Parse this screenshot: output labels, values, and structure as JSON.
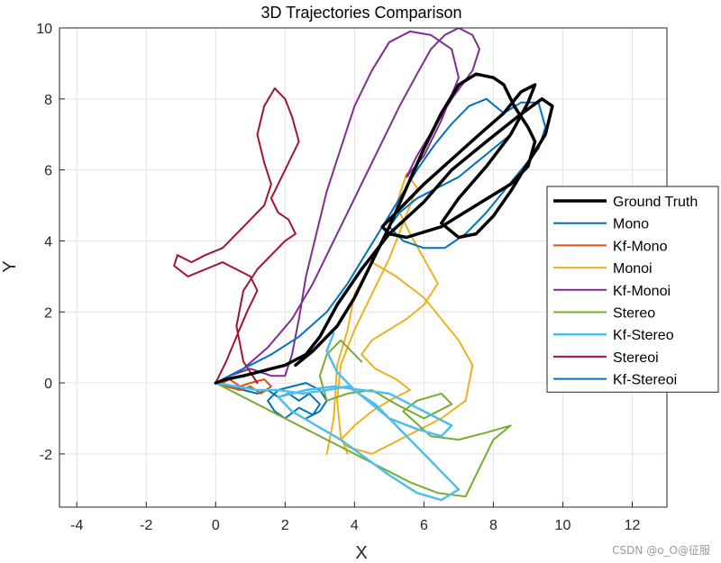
{
  "watermark": "CSDN @o_O@征服",
  "chart_data": {
    "type": "line",
    "title": "3D Trajectories Comparison",
    "xlabel": "X",
    "ylabel": "Y",
    "xlim": [
      -4.5,
      13
    ],
    "ylim": [
      -3.5,
      10
    ],
    "xticks": [
      -4,
      -2,
      0,
      2,
      4,
      6,
      8,
      10,
      12
    ],
    "yticks": [
      -2,
      0,
      2,
      4,
      6,
      8,
      10
    ],
    "grid": true,
    "legend_position": "right",
    "series": [
      {
        "name": "Ground Truth",
        "color": "#000000",
        "width": 3.5,
        "x": [
          2.3,
          2.8,
          3.5,
          4.0,
          4.5,
          5.0,
          5.5,
          6.0,
          6.5,
          7.0,
          7.5,
          8.0,
          8.3,
          8.6,
          9.0,
          9.2,
          9.0,
          8.5,
          7.5,
          6.5,
          5.5,
          5.0,
          4.8,
          5.0,
          5.4,
          6.0,
          6.8,
          7.6,
          8.3,
          8.8,
          9.2,
          9.0,
          8.5,
          7.8,
          7.0,
          6.5,
          7.0,
          7.5,
          8.0,
          8.5,
          9.0,
          9.5,
          9.7,
          9.4,
          8.7,
          7.8,
          6.8,
          6.0,
          5.0,
          4.2,
          3.5,
          3.0,
          2.6,
          2.0,
          1.6,
          1.2,
          0.8,
          0.3,
          0.0
        ],
        "y": [
          0.5,
          0.9,
          1.6,
          2.4,
          3.4,
          4.4,
          5.5,
          6.6,
          7.6,
          8.4,
          8.7,
          8.6,
          8.4,
          7.8,
          7.2,
          6.8,
          6.1,
          5.6,
          5.0,
          4.4,
          4.1,
          4.2,
          4.4,
          4.6,
          5.0,
          5.6,
          6.3,
          7.0,
          7.6,
          8.2,
          8.4,
          7.9,
          7.0,
          6.1,
          5.2,
          4.5,
          4.1,
          4.2,
          4.7,
          5.4,
          6.2,
          7.0,
          7.8,
          8.0,
          7.5,
          6.8,
          6.0,
          5.1,
          4.2,
          3.2,
          2.2,
          1.3,
          0.8,
          0.5,
          0.4,
          0.3,
          0.2,
          0.1,
          0.0
        ]
      },
      {
        "name": "Mono",
        "color": "#0072BD",
        "width": 2,
        "x": [
          0.0,
          0.4,
          0.8,
          1.2,
          1.5,
          1.8,
          2.1,
          2.4,
          2.7,
          3.0,
          2.8,
          2.4,
          2.0,
          1.7,
          1.5,
          1.8,
          2.2,
          2.6,
          3.0,
          3.2,
          3.0,
          2.6
        ],
        "y": [
          0.0,
          -0.1,
          -0.2,
          -0.3,
          -0.2,
          -0.4,
          -0.3,
          -0.5,
          -0.3,
          -0.6,
          -0.9,
          -0.7,
          -1.0,
          -0.8,
          -0.5,
          -0.2,
          -0.1,
          0.0,
          -0.2,
          -0.5,
          -0.8,
          -1.0
        ]
      },
      {
        "name": "Kf-Mono",
        "color": "#D95319",
        "width": 2,
        "x": [
          0.0,
          0.3,
          0.7,
          1.0,
          1.3,
          1.6,
          1.4,
          1.0,
          0.7,
          0.4,
          0.2
        ],
        "y": [
          0.0,
          -0.1,
          -0.2,
          -0.1,
          -0.3,
          -0.1,
          0.1,
          0.0,
          -0.1,
          0.1,
          0.0
        ]
      },
      {
        "name": "Monoi",
        "color": "#EDB120",
        "width": 2,
        "x": [
          3.8,
          3.6,
          3.5,
          3.6,
          4.0,
          4.5,
          5.0,
          5.4,
          5.8,
          5.5,
          5.2,
          5.6,
          6.0,
          6.4,
          6.0,
          5.5,
          5.0,
          4.5,
          4.2,
          4.6,
          5.2,
          5.6,
          5.0,
          4.5,
          4.0,
          3.6,
          3.8,
          4.5,
          5.5,
          6.5,
          7.2,
          7.4,
          7.0,
          6.5,
          6.0,
          5.2,
          4.5,
          4.0,
          3.8,
          3.5,
          3.4,
          3.2
        ],
        "y": [
          -2.0,
          -1.5,
          -0.5,
          0.5,
          1.5,
          2.5,
          3.5,
          4.5,
          5.5,
          5.9,
          5.0,
          4.2,
          3.5,
          2.8,
          2.2,
          1.8,
          1.5,
          1.2,
          0.8,
          0.4,
          0.1,
          -0.2,
          -0.5,
          -0.8,
          -1.2,
          -1.6,
          -1.8,
          -2.0,
          -1.5,
          -1.0,
          -0.5,
          0.5,
          1.2,
          1.8,
          2.4,
          3.0,
          3.4,
          2.5,
          1.5,
          0.5,
          -1.0,
          -2.0
        ]
      },
      {
        "name": "Kf-Monoi",
        "color": "#7E2F8E",
        "width": 2,
        "x": [
          0.0,
          0.8,
          1.5,
          2.2,
          2.8,
          3.3,
          3.8,
          4.3,
          4.8,
          5.3,
          5.8,
          6.2,
          6.6,
          7.0,
          7.4,
          7.6,
          7.4,
          6.8,
          6.3,
          5.8,
          5.5,
          6.0,
          6.5,
          7.0,
          6.8,
          6.2,
          5.6,
          5.0,
          4.5,
          4.0,
          3.6,
          3.2,
          2.9,
          2.6,
          2.4,
          2.2,
          2.0,
          1.6,
          1.0,
          0.4,
          0.0
        ],
        "y": [
          0.0,
          0.4,
          1.0,
          1.8,
          2.8,
          3.8,
          4.8,
          5.8,
          6.8,
          7.8,
          8.7,
          9.4,
          9.8,
          10.0,
          9.8,
          9.4,
          8.8,
          8.0,
          7.2,
          6.4,
          5.8,
          6.4,
          7.4,
          8.6,
          9.4,
          9.8,
          9.9,
          9.6,
          8.8,
          7.8,
          6.6,
          5.4,
          4.2,
          3.0,
          1.8,
          0.8,
          0.2,
          0.2,
          0.4,
          0.2,
          0.0
        ]
      },
      {
        "name": "Stereo",
        "color": "#77AC30",
        "width": 2,
        "x": [
          0.0,
          0.8,
          1.6,
          2.4,
          3.2,
          4.0,
          4.8,
          5.6,
          6.4,
          7.2,
          8.0,
          8.5,
          7.8,
          7.0,
          6.2,
          5.4,
          5.8,
          6.5,
          6.8,
          6.0,
          5.2,
          4.5,
          3.8,
          3.2,
          3.0,
          3.2,
          3.6,
          4.2
        ],
        "y": [
          0.0,
          -0.4,
          -0.8,
          -1.2,
          -1.6,
          -2.0,
          -2.4,
          -2.8,
          -3.1,
          -3.2,
          -1.6,
          -1.2,
          -1.4,
          -1.6,
          -1.5,
          -0.8,
          -0.5,
          -0.3,
          -0.6,
          -1.0,
          -0.6,
          -0.2,
          -0.3,
          -0.5,
          0.2,
          0.8,
          1.2,
          0.6
        ]
      },
      {
        "name": "Kf-Stereo",
        "color": "#4DBEEE",
        "width": 2.5,
        "x": [
          0.0,
          0.6,
          1.2,
          1.8,
          2.5,
          3.2,
          3.8,
          4.6,
          5.2,
          5.8,
          6.5,
          7.0,
          6.5,
          5.8,
          5.0,
          4.3,
          3.6,
          2.9,
          2.2,
          1.8,
          2.6,
          3.4,
          4.2,
          5.0,
          5.6,
          6.2,
          6.8,
          6.5,
          5.8,
          5.0,
          4.5,
          4.0,
          3.5,
          3.2,
          3.4
        ],
        "y": [
          0.0,
          -0.1,
          -0.2,
          -0.2,
          -0.3,
          -0.2,
          -0.1,
          -0.6,
          -1.2,
          -1.8,
          -2.5,
          -3.0,
          -3.3,
          -3.1,
          -2.6,
          -2.1,
          -1.6,
          -1.2,
          -0.8,
          -0.4,
          -0.2,
          -0.1,
          -0.2,
          -0.3,
          -0.6,
          -0.9,
          -1.2,
          -1.5,
          -1.3,
          -1.0,
          -0.6,
          -0.2,
          0.3,
          0.9,
          1.4
        ]
      },
      {
        "name": "Stereoi",
        "color": "#A2142F",
        "width": 2,
        "x": [
          0.0,
          0.3,
          0.6,
          0.9,
          1.2,
          1.0,
          0.6,
          0.2,
          -0.3,
          -0.8,
          -1.2,
          -1.1,
          -0.7,
          -0.3,
          0.2,
          0.6,
          1.0,
          1.4,
          1.6,
          1.4,
          1.2,
          1.4,
          1.7,
          2.0,
          2.2,
          2.4,
          2.1,
          1.8,
          1.6,
          1.8,
          2.1,
          2.3,
          2.0,
          1.6,
          1.2,
          0.8,
          0.6,
          0.8,
          1.2
        ],
        "y": [
          0.0,
          0.6,
          1.3,
          2.0,
          2.6,
          3.0,
          3.2,
          3.4,
          3.2,
          3.0,
          3.3,
          3.6,
          3.4,
          3.6,
          3.8,
          4.2,
          4.6,
          5.0,
          5.6,
          6.2,
          7.0,
          7.8,
          8.3,
          8.0,
          7.5,
          6.8,
          6.2,
          5.6,
          5.2,
          4.8,
          4.6,
          4.2,
          4.0,
          3.6,
          3.2,
          2.6,
          1.6,
          0.6,
          0.0
        ]
      },
      {
        "name": "Kf-Stereoi",
        "color": "#0072BD",
        "width": 2,
        "x": [
          0.0,
          0.8,
          1.6,
          2.4,
          3.2,
          3.8,
          4.3,
          4.8,
          5.3,
          5.8,
          6.3,
          6.8,
          7.3,
          7.8,
          8.3,
          8.8,
          9.3,
          9.5,
          9.3,
          8.8,
          8.3,
          7.8,
          7.2,
          6.6,
          6.0,
          5.4,
          5.0,
          5.3,
          5.8,
          6.4,
          7.0,
          7.5,
          8.0,
          8.5
        ],
        "y": [
          0.0,
          0.4,
          0.8,
          1.3,
          2.0,
          2.8,
          3.6,
          4.4,
          5.2,
          6.0,
          6.7,
          7.3,
          7.8,
          8.0,
          7.6,
          7.9,
          7.9,
          7.2,
          6.6,
          6.0,
          5.4,
          4.8,
          4.2,
          3.8,
          3.8,
          4.0,
          4.4,
          4.8,
          5.2,
          5.5,
          5.8,
          6.2,
          6.6,
          7.0
        ]
      }
    ]
  }
}
